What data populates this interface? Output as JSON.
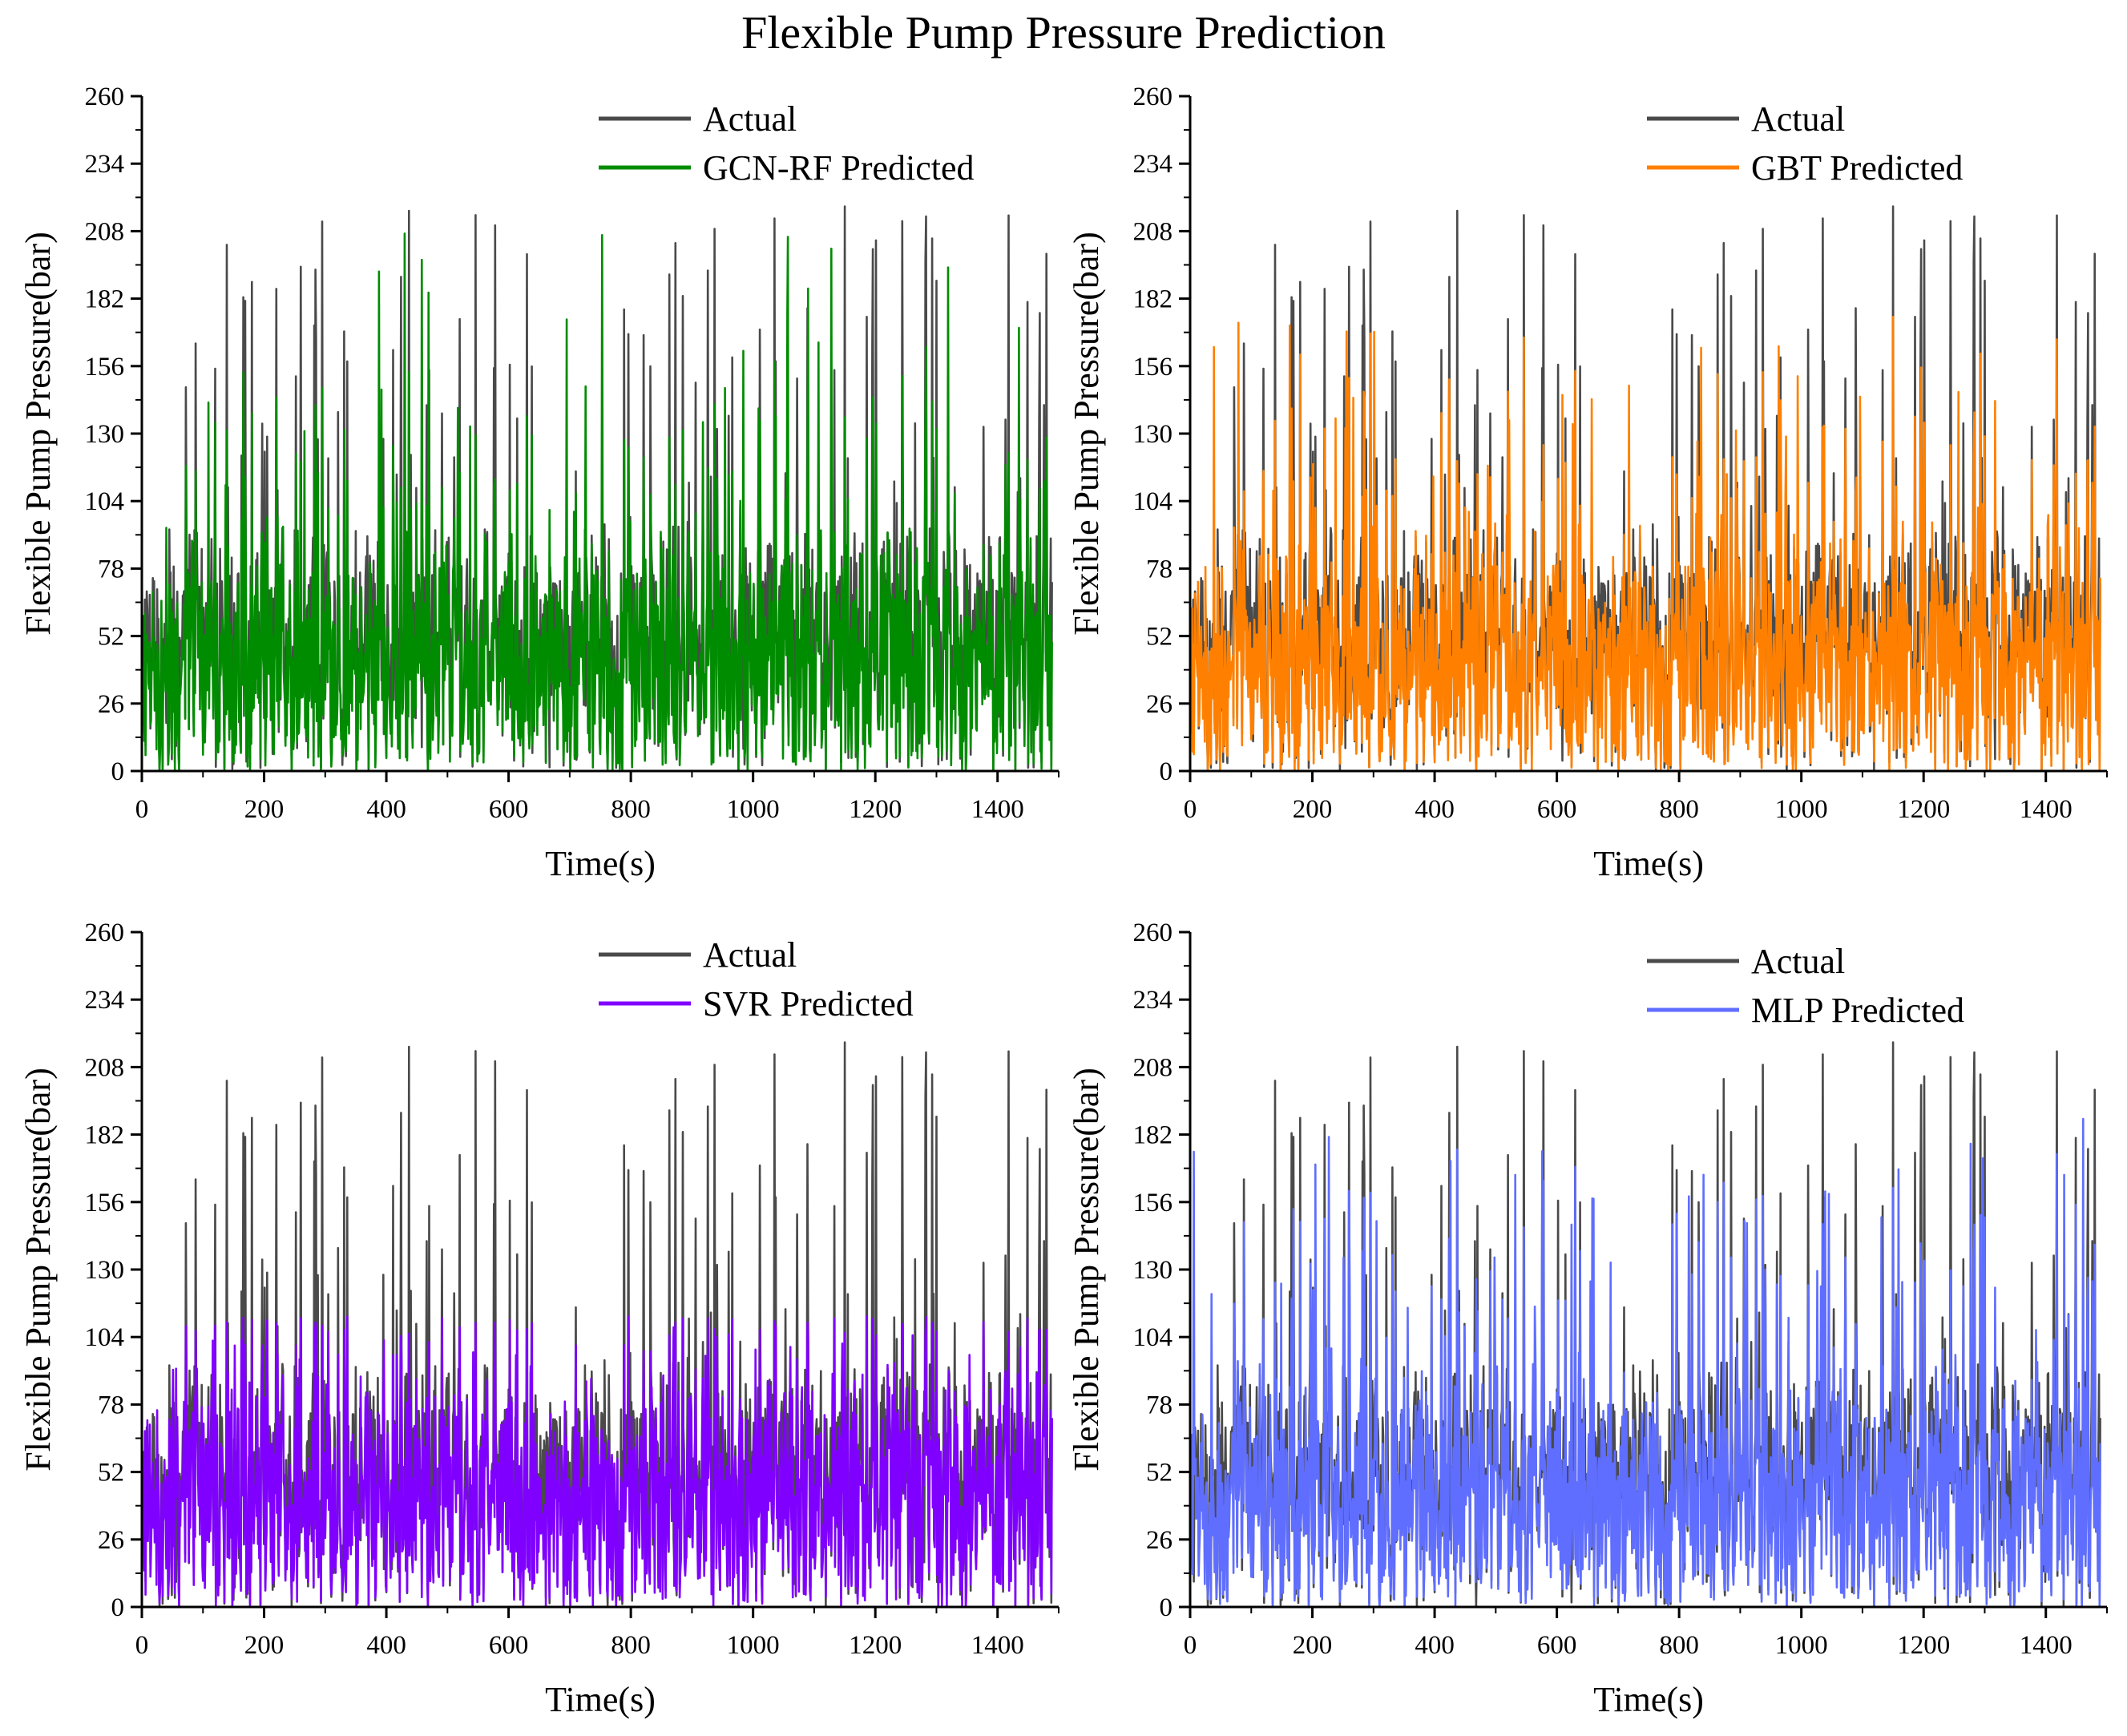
{
  "title": "Flexible Pump Pressure Prediction",
  "chart_data": [
    {
      "type": "line",
      "panel": "top-left",
      "xlabel": "Time(s)",
      "ylabel": "Flexible Pump Pressure(bar)",
      "xlim": [
        0,
        1500
      ],
      "ylim": [
        0,
        260
      ],
      "xticks": [
        0,
        200,
        400,
        600,
        800,
        1000,
        1200,
        1400
      ],
      "yticks": [
        0,
        26,
        52,
        78,
        104,
        130,
        156,
        182,
        208,
        234,
        260
      ],
      "legend_position": "top-right",
      "series": [
        {
          "name": "Actual",
          "color": "#4a4a4a",
          "n_points": 1490,
          "typical_max": 90,
          "peak_max": 220
        },
        {
          "name": "GCN-RF Predicted",
          "color": "#008c00",
          "n_points": 1490,
          "typical_max": 90,
          "peak_max": 206
        }
      ]
    },
    {
      "type": "line",
      "panel": "top-right",
      "xlabel": "Time(s)",
      "ylabel": "Flexible Pump Pressure(bar)",
      "xlim": [
        0,
        1500
      ],
      "ylim": [
        0,
        260
      ],
      "xticks": [
        0,
        200,
        400,
        600,
        800,
        1000,
        1200,
        1400
      ],
      "yticks": [
        0,
        26,
        52,
        78,
        104,
        130,
        156,
        182,
        208,
        234,
        260
      ],
      "legend_position": "top-right",
      "series": [
        {
          "name": "Actual",
          "color": "#4a4a4a",
          "n_points": 1490,
          "typical_max": 90,
          "peak_max": 220
        },
        {
          "name": "GBT Predicted",
          "color": "#ff8000",
          "n_points": 1490,
          "typical_max": 100,
          "peak_max": 175
        }
      ]
    },
    {
      "type": "line",
      "panel": "bottom-left",
      "xlabel": "Time(s)",
      "ylabel": "Flexible Pump Pressure(bar)",
      "xlim": [
        0,
        1500
      ],
      "ylim": [
        0,
        260
      ],
      "xticks": [
        0,
        200,
        400,
        600,
        800,
        1000,
        1200,
        1400
      ],
      "yticks": [
        0,
        26,
        52,
        78,
        104,
        130,
        156,
        182,
        208,
        234,
        260
      ],
      "legend_position": "top-right",
      "series": [
        {
          "name": "Actual",
          "color": "#4a4a4a",
          "n_points": 1490,
          "typical_max": 90,
          "peak_max": 220
        },
        {
          "name": "SVR Predicted",
          "color": "#8000ff",
          "n_points": 1490,
          "typical_max": 80,
          "peak_max": 108
        }
      ]
    },
    {
      "type": "line",
      "panel": "bottom-right",
      "xlabel": "Time(s)",
      "ylabel": "Flexible Pump Pressure(bar)",
      "xlim": [
        0,
        1500
      ],
      "ylim": [
        0,
        260
      ],
      "xticks": [
        0,
        200,
        400,
        600,
        800,
        1000,
        1200,
        1400
      ],
      "yticks": [
        0,
        26,
        52,
        78,
        104,
        130,
        156,
        182,
        208,
        234,
        260
      ],
      "legend_position": "top-right",
      "series": [
        {
          "name": "Actual",
          "color": "#4a4a4a",
          "n_points": 1490,
          "typical_max": 90,
          "peak_max": 220
        },
        {
          "name": "MLP Predicted",
          "color": "#5f6eff",
          "n_points": 1490,
          "typical_max": 110,
          "peak_max": 185
        }
      ]
    }
  ]
}
